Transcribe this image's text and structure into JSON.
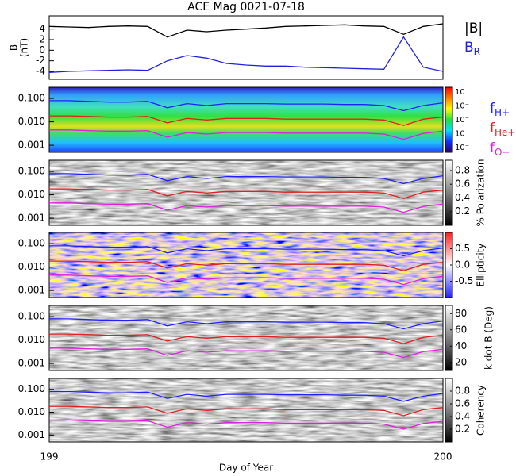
{
  "title": "ACE Mag 0021-07-18",
  "x_label": "Day of Year",
  "xlim": [
    199,
    200
  ],
  "xticks": [
    199,
    200
  ],
  "chart_data": [
    {
      "type": "line",
      "ylabel": [
        "B",
        "(nT)"
      ],
      "ylim": [
        -5.5,
        6.5
      ],
      "yticks": [
        -4,
        -2,
        0,
        2,
        4
      ],
      "log": false,
      "background": "none",
      "x": [
        199,
        199.05,
        199.1,
        199.15,
        199.2,
        199.25,
        199.3,
        199.35,
        199.4,
        199.45,
        199.5,
        199.55,
        199.6,
        199.65,
        199.7,
        199.75,
        199.8,
        199.85,
        199.9,
        199.95,
        200
      ],
      "series": [
        {
          "name": "|B|",
          "color": "#000000",
          "values": [
            4.5,
            4.4,
            4.3,
            4.5,
            4.6,
            4.5,
            2.5,
            3.8,
            3.5,
            3.8,
            4.0,
            4.2,
            4.5,
            4.6,
            4.7,
            4.8,
            4.6,
            4.5,
            3.0,
            4.5,
            5.0
          ]
        },
        {
          "name": "B",
          "subscript": "R",
          "color": "#2020e0",
          "values": [
            -4.2,
            -4.0,
            -3.9,
            -3.8,
            -3.7,
            -3.8,
            -2.0,
            -1.0,
            -1.5,
            -2.5,
            -2.8,
            -3.0,
            -3.0,
            -3.2,
            -3.3,
            -3.4,
            -3.5,
            -3.6,
            2.5,
            -3.2,
            -4.0
          ]
        }
      ]
    },
    {
      "type": "line",
      "ylim": [
        0.0005,
        0.3
      ],
      "log": true,
      "background": "spectrum",
      "yticks": [
        {
          "value": 0.1,
          "label": "0.100"
        },
        {
          "value": 0.01,
          "label": "0.010"
        },
        {
          "value": 0.001,
          "label": "0.001"
        }
      ],
      "colorbar": {
        "colors": [
          "#2a0060",
          "#1030ff",
          "#00e0ff",
          "#20e040",
          "#ffff00",
          "#ff8000",
          "#ff0000"
        ],
        "tick_labels": [
          "10⁻",
          "10⁻",
          "10⁻",
          "10⁻",
          "10⁻"
        ]
      },
      "x": [
        199,
        199.05,
        199.1,
        199.15,
        199.2,
        199.25,
        199.3,
        199.35,
        199.4,
        199.45,
        199.5,
        199.55,
        199.6,
        199.65,
        199.7,
        199.75,
        199.8,
        199.85,
        199.9,
        199.95,
        200
      ],
      "series": [
        {
          "name": "f",
          "subscript": "H+",
          "color": "#2020ff",
          "values": [
            0.08,
            0.08,
            0.075,
            0.07,
            0.07,
            0.075,
            0.04,
            0.06,
            0.05,
            0.06,
            0.06,
            0.06,
            0.058,
            0.058,
            0.058,
            0.055,
            0.055,
            0.05,
            0.03,
            0.05,
            0.065
          ]
        },
        {
          "name": "f",
          "subscript": "He+",
          "color": "#e02020",
          "values": [
            0.018,
            0.018,
            0.017,
            0.016,
            0.016,
            0.017,
            0.009,
            0.014,
            0.012,
            0.014,
            0.014,
            0.014,
            0.013,
            0.013,
            0.013,
            0.013,
            0.013,
            0.012,
            0.007,
            0.013,
            0.016
          ]
        },
        {
          "name": "f",
          "subscript": "O+",
          "color": "#e020e0",
          "values": [
            0.0045,
            0.0045,
            0.0042,
            0.004,
            0.004,
            0.0042,
            0.0022,
            0.0035,
            0.003,
            0.0035,
            0.0035,
            0.0035,
            0.0033,
            0.0033,
            0.0033,
            0.0033,
            0.0033,
            0.003,
            0.0018,
            0.0032,
            0.004
          ]
        }
      ]
    },
    {
      "type": "line",
      "ylim": [
        0.0005,
        0.3
      ],
      "log": true,
      "background": "gray",
      "yticks": [
        {
          "value": 0.1,
          "label": "0.100"
        },
        {
          "value": 0.01,
          "label": "0.010"
        },
        {
          "value": 0.001,
          "label": "0.001"
        }
      ],
      "colorbar": {
        "label": "% Polarization",
        "colors": [
          "#000000",
          "#ffffff"
        ],
        "lim": [
          0,
          0.95
        ],
        "ticks": [
          0.2,
          0.4,
          0.6,
          0.8
        ]
      },
      "x": [
        199,
        199.05,
        199.1,
        199.15,
        199.2,
        199.25,
        199.3,
        199.35,
        199.4,
        199.45,
        199.5,
        199.55,
        199.6,
        199.65,
        199.7,
        199.75,
        199.8,
        199.85,
        199.9,
        199.95,
        200
      ],
      "series": [
        {
          "color": "#2020ff",
          "values": [
            0.08,
            0.08,
            0.075,
            0.07,
            0.07,
            0.075,
            0.04,
            0.06,
            0.05,
            0.06,
            0.06,
            0.06,
            0.058,
            0.058,
            0.058,
            0.055,
            0.055,
            0.05,
            0.03,
            0.05,
            0.065
          ]
        },
        {
          "color": "#e02020",
          "values": [
            0.018,
            0.018,
            0.017,
            0.016,
            0.016,
            0.017,
            0.009,
            0.014,
            0.012,
            0.014,
            0.014,
            0.014,
            0.013,
            0.013,
            0.013,
            0.013,
            0.013,
            0.012,
            0.007,
            0.013,
            0.016
          ]
        },
        {
          "color": "#e020e0",
          "values": [
            0.0045,
            0.0045,
            0.0042,
            0.004,
            0.004,
            0.0042,
            0.0022,
            0.0035,
            0.003,
            0.0035,
            0.0035,
            0.0035,
            0.0033,
            0.0033,
            0.0033,
            0.0033,
            0.0033,
            0.003,
            0.0018,
            0.0032,
            0.004
          ]
        }
      ]
    },
    {
      "type": "line",
      "ylim": [
        0.0005,
        0.3
      ],
      "log": true,
      "background": "redblue",
      "yticks": [
        {
          "value": 0.1,
          "label": "0.100"
        },
        {
          "value": 0.01,
          "label": "0.010"
        },
        {
          "value": 0.001,
          "label": "0.001"
        }
      ],
      "colorbar": {
        "label": "Ellipticity",
        "colors": [
          "#2020ff",
          "#ffffff",
          "#ff2020"
        ],
        "lim": [
          -1,
          1
        ],
        "ticks": [
          0.5,
          {
            "value": 0,
            "label": "0.0"
          },
          -0.5
        ]
      },
      "x": [
        199,
        199.05,
        199.1,
        199.15,
        199.2,
        199.25,
        199.3,
        199.35,
        199.4,
        199.45,
        199.5,
        199.55,
        199.6,
        199.65,
        199.7,
        199.75,
        199.8,
        199.85,
        199.9,
        199.95,
        200
      ],
      "series": [
        {
          "color": "#2020ff",
          "values": [
            0.08,
            0.08,
            0.075,
            0.07,
            0.07,
            0.075,
            0.04,
            0.06,
            0.05,
            0.06,
            0.06,
            0.06,
            0.058,
            0.058,
            0.058,
            0.055,
            0.055,
            0.05,
            0.03,
            0.05,
            0.065
          ]
        },
        {
          "color": "#e02020",
          "values": [
            0.018,
            0.018,
            0.017,
            0.016,
            0.016,
            0.017,
            0.009,
            0.014,
            0.012,
            0.014,
            0.014,
            0.014,
            0.013,
            0.013,
            0.013,
            0.013,
            0.013,
            0.012,
            0.007,
            0.013,
            0.016
          ]
        },
        {
          "color": "#e020e0",
          "values": [
            0.0045,
            0.0045,
            0.0042,
            0.004,
            0.004,
            0.0042,
            0.0022,
            0.0035,
            0.003,
            0.0035,
            0.0035,
            0.0035,
            0.0033,
            0.0033,
            0.0033,
            0.0033,
            0.0033,
            0.003,
            0.0018,
            0.0032,
            0.004
          ]
        }
      ]
    },
    {
      "type": "line",
      "ylim": [
        0.0005,
        0.3
      ],
      "log": true,
      "background": "gray",
      "yticks": [
        {
          "value": 0.1,
          "label": "0.100"
        },
        {
          "value": 0.01,
          "label": "0.010"
        },
        {
          "value": 0.001,
          "label": "0.001"
        }
      ],
      "colorbar": {
        "label": "k dot B (Deg)",
        "colors": [
          "#000000",
          "#ffffff"
        ],
        "lim": [
          10,
          90
        ],
        "ticks": [
          20,
          40,
          60,
          80
        ]
      },
      "x": [
        199,
        199.05,
        199.1,
        199.15,
        199.2,
        199.25,
        199.3,
        199.35,
        199.4,
        199.45,
        199.5,
        199.55,
        199.6,
        199.65,
        199.7,
        199.75,
        199.8,
        199.85,
        199.9,
        199.95,
        200
      ],
      "series": [
        {
          "color": "#2020ff",
          "values": [
            0.08,
            0.08,
            0.075,
            0.07,
            0.07,
            0.075,
            0.04,
            0.06,
            0.05,
            0.06,
            0.06,
            0.06,
            0.058,
            0.058,
            0.058,
            0.055,
            0.055,
            0.05,
            0.03,
            0.05,
            0.065
          ]
        },
        {
          "color": "#e02020",
          "values": [
            0.018,
            0.018,
            0.017,
            0.016,
            0.016,
            0.017,
            0.009,
            0.014,
            0.012,
            0.014,
            0.014,
            0.014,
            0.013,
            0.013,
            0.013,
            0.013,
            0.013,
            0.012,
            0.007,
            0.013,
            0.016
          ]
        },
        {
          "color": "#e020e0",
          "values": [
            0.0045,
            0.0045,
            0.0042,
            0.004,
            0.004,
            0.0042,
            0.0022,
            0.0035,
            0.003,
            0.0035,
            0.0035,
            0.0035,
            0.0033,
            0.0033,
            0.0033,
            0.0033,
            0.0033,
            0.003,
            0.0018,
            0.0032,
            0.004
          ]
        }
      ]
    },
    {
      "type": "line",
      "ylim": [
        0.0005,
        0.3
      ],
      "log": true,
      "background": "gray",
      "yticks": [
        {
          "value": 0.1,
          "label": "0.100"
        },
        {
          "value": 0.01,
          "label": "0.010"
        },
        {
          "value": 0.001,
          "label": "0.001"
        }
      ],
      "colorbar": {
        "label": "Coherency",
        "colors": [
          "#000000",
          "#ffffff"
        ],
        "lim": [
          0,
          1
        ],
        "ticks": [
          0.2,
          0.4,
          0.6,
          0.8
        ]
      },
      "x": [
        199,
        199.05,
        199.1,
        199.15,
        199.2,
        199.25,
        199.3,
        199.35,
        199.4,
        199.45,
        199.5,
        199.55,
        199.6,
        199.65,
        199.7,
        199.75,
        199.8,
        199.85,
        199.9,
        199.95,
        200
      ],
      "series": [
        {
          "color": "#2020ff",
          "values": [
            0.08,
            0.08,
            0.075,
            0.07,
            0.07,
            0.075,
            0.04,
            0.06,
            0.05,
            0.06,
            0.06,
            0.06,
            0.058,
            0.058,
            0.058,
            0.055,
            0.055,
            0.05,
            0.03,
            0.05,
            0.065
          ]
        },
        {
          "color": "#e02020",
          "values": [
            0.018,
            0.018,
            0.017,
            0.016,
            0.016,
            0.017,
            0.009,
            0.014,
            0.012,
            0.014,
            0.014,
            0.014,
            0.013,
            0.013,
            0.013,
            0.013,
            0.013,
            0.012,
            0.007,
            0.013,
            0.016
          ]
        },
        {
          "color": "#e020e0",
          "values": [
            0.0045,
            0.0045,
            0.0042,
            0.004,
            0.004,
            0.0042,
            0.0022,
            0.0035,
            0.003,
            0.0035,
            0.0035,
            0.0035,
            0.0033,
            0.0033,
            0.0033,
            0.0033,
            0.0033,
            0.003,
            0.0018,
            0.0032,
            0.004
          ]
        }
      ]
    }
  ]
}
